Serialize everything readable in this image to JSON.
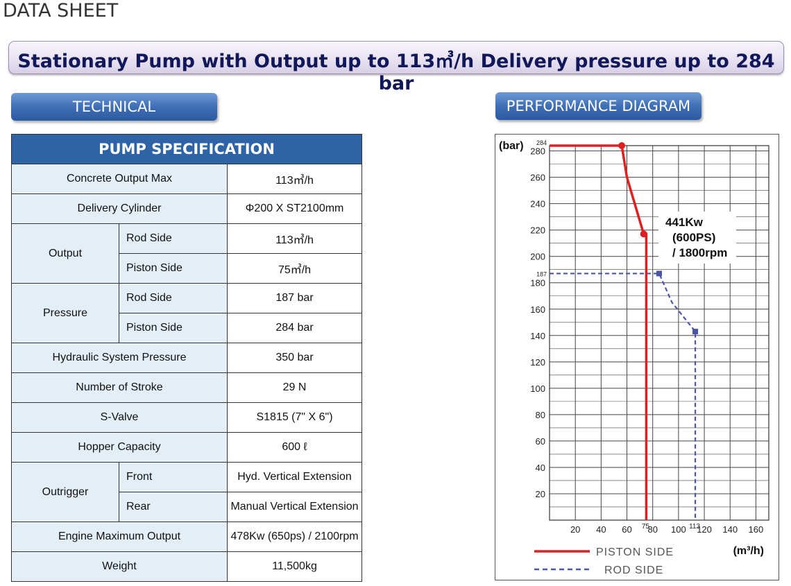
{
  "sheet_title": "DATA SHEET",
  "banner": "Stationary Pump with Output up to 113㎥/h Delivery pressure up to 284 bar",
  "sections": {
    "technical": "TECHNICAL",
    "performance": "PERFORMANCE DIAGRAM"
  },
  "spec": {
    "header": "PUMP SPECIFICATION",
    "concrete_output": {
      "label": "Concrete Output Max",
      "value": "113㎥/h"
    },
    "delivery_cylinder": {
      "label": "Delivery Cylinder",
      "value": "Φ200 X ST2100mm"
    },
    "output": {
      "label": "Output",
      "rod_label": "Rod Side",
      "rod_value": "113㎥/h",
      "piston_label": "Piston Side",
      "piston_value": "75㎥/h"
    },
    "pressure": {
      "label": "Pressure",
      "rod_label": "Rod Side",
      "rod_value": "187 bar",
      "piston_label": "Piston Side",
      "piston_value": "284 bar"
    },
    "hydraulic": {
      "label": "Hydraulic System Pressure",
      "value": "350 bar"
    },
    "stroke": {
      "label": "Number of Stroke",
      "value": "29 N"
    },
    "svalve": {
      "label": "S-Valve",
      "value": "S1815 (7\" X 6\")"
    },
    "hopper": {
      "label": "Hopper Capacity",
      "value": "600 ℓ"
    },
    "outrigger": {
      "label": "Outrigger",
      "front_label": "Front",
      "front_value": "Hyd. Vertical Extension",
      "rear_label": "Rear",
      "rear_value": "Manual Vertical Extension"
    },
    "engine": {
      "label": "Engine Maximum Output",
      "value": "478Kw (650ps) / 2100rpm"
    },
    "weight": {
      "label": "Weight",
      "value": "11,500kg"
    }
  },
  "chart_data": {
    "type": "line",
    "ylabel": "(bar)",
    "xlabel": "(m³/h)",
    "xlim": [
      0,
      170
    ],
    "ylim": [
      0,
      284
    ],
    "x_ticks": [
      20,
      40,
      60,
      80,
      100,
      120,
      140,
      160
    ],
    "x_special_ticks": [
      75,
      113
    ],
    "y_ticks": [
      20,
      40,
      60,
      80,
      100,
      120,
      140,
      160,
      180,
      200,
      220,
      240,
      260,
      280
    ],
    "y_special_ticks": [
      284,
      187
    ],
    "annotation": [
      "441Kw",
      "(600PS)",
      "/ 1800rpm"
    ],
    "grid": true,
    "series": [
      {
        "name": "PISTON SIDE",
        "color": "#e02020",
        "style": "solid",
        "points": [
          [
            0,
            284
          ],
          [
            56,
            284
          ],
          [
            60,
            260
          ],
          [
            73,
            217
          ],
          [
            75,
            217
          ],
          [
            75,
            0
          ]
        ],
        "markers": [
          [
            56,
            284
          ],
          [
            73,
            217
          ]
        ]
      },
      {
        "name": "ROD SIDE",
        "color": "#4a55a8",
        "style": "dashed",
        "points": [
          [
            0,
            187
          ],
          [
            85,
            187
          ],
          [
            95,
            165
          ],
          [
            113,
            143
          ],
          [
            113,
            0
          ]
        ],
        "markers": [
          [
            85,
            187
          ],
          [
            113,
            143
          ]
        ]
      }
    ]
  }
}
